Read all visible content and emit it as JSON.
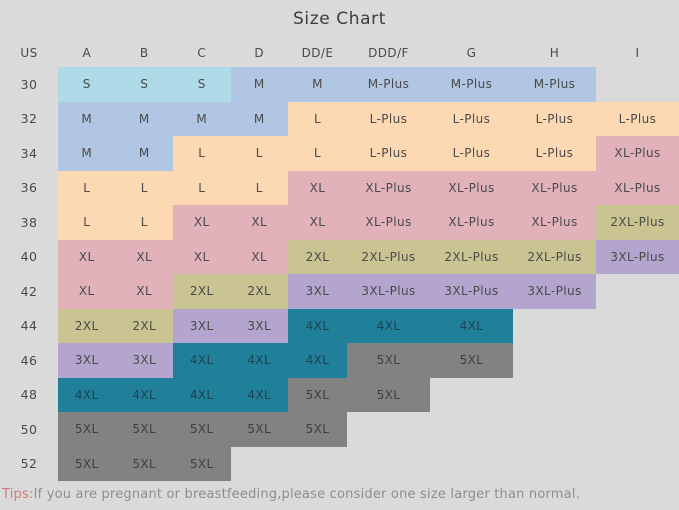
{
  "chart_data": {
    "type": "table",
    "title": "Size Chart",
    "columns": [
      "US",
      "A",
      "B",
      "C",
      "D",
      "DD/E",
      "DDD/F",
      "G",
      "H",
      "I"
    ],
    "rows": [
      {
        "us": "30",
        "cells": [
          [
            "S",
            "s"
          ],
          [
            "S",
            "s"
          ],
          [
            "S",
            "s"
          ],
          [
            "M",
            "m"
          ],
          [
            "M",
            "m"
          ],
          [
            "M-Plus",
            "m"
          ],
          [
            "M-Plus",
            "m"
          ],
          [
            "M-Plus",
            "m"
          ],
          null
        ]
      },
      {
        "us": "32",
        "cells": [
          [
            "M",
            "m"
          ],
          [
            "M",
            "m"
          ],
          [
            "M",
            "m"
          ],
          [
            "M",
            "m"
          ],
          [
            "L",
            "l"
          ],
          [
            "L-Plus",
            "l"
          ],
          [
            "L-Plus",
            "l"
          ],
          [
            "L-Plus",
            "l"
          ],
          [
            "L-Plus",
            "l"
          ]
        ]
      },
      {
        "us": "34",
        "cells": [
          [
            "M",
            "m"
          ],
          [
            "M",
            "m"
          ],
          [
            "L",
            "l"
          ],
          [
            "L",
            "l"
          ],
          [
            "L",
            "l"
          ],
          [
            "L-Plus",
            "l"
          ],
          [
            "L-Plus",
            "l"
          ],
          [
            "L-Plus",
            "l"
          ],
          [
            "XL-Plus",
            "xl"
          ]
        ]
      },
      {
        "us": "36",
        "cells": [
          [
            "L",
            "l"
          ],
          [
            "L",
            "l"
          ],
          [
            "L",
            "l"
          ],
          [
            "L",
            "l"
          ],
          [
            "XL",
            "xl"
          ],
          [
            "XL-Plus",
            "xl"
          ],
          [
            "XL-Plus",
            "xl"
          ],
          [
            "XL-Plus",
            "xl"
          ],
          [
            "XL-Plus",
            "xl"
          ]
        ]
      },
      {
        "us": "38",
        "cells": [
          [
            "L",
            "l"
          ],
          [
            "L",
            "l"
          ],
          [
            "XL",
            "xl"
          ],
          [
            "XL",
            "xl"
          ],
          [
            "XL",
            "xl"
          ],
          [
            "XL-Plus",
            "xl"
          ],
          [
            "XL-Plus",
            "xl"
          ],
          [
            "XL-Plus",
            "xl"
          ],
          [
            "2XL-Plus",
            "xxl"
          ]
        ]
      },
      {
        "us": "40",
        "cells": [
          [
            "XL",
            "xl"
          ],
          [
            "XL",
            "xl"
          ],
          [
            "XL",
            "xl"
          ],
          [
            "XL",
            "xl"
          ],
          [
            "2XL",
            "xxl"
          ],
          [
            "2XL-Plus",
            "xxl"
          ],
          [
            "2XL-Plus",
            "xxl"
          ],
          [
            "2XL-Plus",
            "xxl"
          ],
          [
            "3XL-Plus",
            "xxxl"
          ]
        ]
      },
      {
        "us": "42",
        "cells": [
          [
            "XL",
            "xl"
          ],
          [
            "XL",
            "xl"
          ],
          [
            "2XL",
            "xxl"
          ],
          [
            "2XL",
            "xxl"
          ],
          [
            "3XL",
            "xxxl"
          ],
          [
            "3XL-Plus",
            "xxxl"
          ],
          [
            "3XL-Plus",
            "xxxl"
          ],
          [
            "3XL-Plus",
            "xxxl"
          ],
          null
        ]
      },
      {
        "us": "44",
        "cells": [
          [
            "2XL",
            "xxl"
          ],
          [
            "2XL",
            "xxl"
          ],
          [
            "3XL",
            "xxxl"
          ],
          [
            "3XL",
            "xxxl"
          ],
          [
            "4XL",
            "xxxxl"
          ],
          [
            "4XL",
            "xxxxl"
          ],
          [
            "4XL",
            "xxxxl"
          ],
          null,
          null
        ]
      },
      {
        "us": "46",
        "cells": [
          [
            "3XL",
            "xxxl"
          ],
          [
            "3XL",
            "xxxl"
          ],
          [
            "4XL",
            "xxxxl"
          ],
          [
            "4XL",
            "xxxxl"
          ],
          [
            "4XL",
            "xxxxl"
          ],
          [
            "5XL",
            "xxxxxl"
          ],
          [
            "5XL",
            "xxxxxl"
          ],
          null,
          null
        ]
      },
      {
        "us": "48",
        "cells": [
          [
            "4XL",
            "xxxxl"
          ],
          [
            "4XL",
            "xxxxl"
          ],
          [
            "4XL",
            "xxxxl"
          ],
          [
            "4XL",
            "xxxxl"
          ],
          [
            "5XL",
            "xxxxxl"
          ],
          [
            "5XL",
            "xxxxxl"
          ],
          null,
          null,
          null
        ]
      },
      {
        "us": "50",
        "cells": [
          [
            "5XL",
            "xxxxxl"
          ],
          [
            "5XL",
            "xxxxxl"
          ],
          [
            "5XL",
            "xxxxxl"
          ],
          [
            "5XL",
            "xxxxxl"
          ],
          [
            "5XL",
            "xxxxxl"
          ],
          null,
          null,
          null,
          null
        ]
      },
      {
        "us": "52",
        "cells": [
          [
            "5XL",
            "xxxxxl"
          ],
          [
            "5XL",
            "xxxxxl"
          ],
          [
            "5XL",
            "xxxxxl"
          ],
          null,
          null,
          null,
          null,
          null,
          null
        ]
      }
    ],
    "layout_hints": {
      "grid": "off",
      "legend": "none",
      "row_axis_label": "US",
      "column_axis": "cup sizes"
    }
  },
  "tips": {
    "label": "Tips:",
    "text": "If you are pregnant or breastfeeding,please consider one size larger than normal."
  },
  "colors": {
    "background": "#dadada",
    "title_text": "#3c3c3c",
    "header_text": "#4a4a4a",
    "cell_text": "#4a4a4a",
    "cell_text_on_teal": "#1d4354",
    "cell_text_on_gray": "#3f3f3f",
    "tips_label": "#cf7d74",
    "tips_text": "#8e8e8e",
    "swatches": {
      "s": "#afdbe8",
      "m": "#b1c6e2",
      "l": "#fcd8b3",
      "xl": "#e1b2ba",
      "xxl": "#cac493",
      "xxxl": "#b3a5ce",
      "xxxxl": "#20809a",
      "xxxxxl": "#828282"
    }
  }
}
